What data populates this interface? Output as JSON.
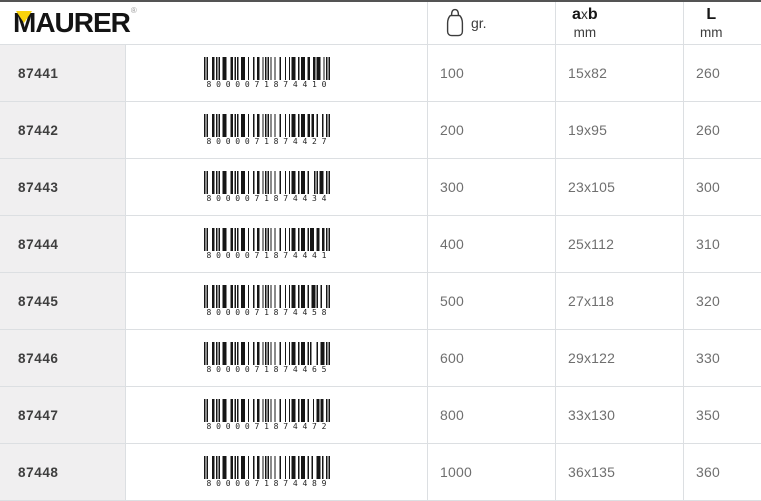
{
  "brand": {
    "logo_text": "MAURER",
    "registered_mark": "®",
    "logo_accent_color": "#f8d20d"
  },
  "table": {
    "header": {
      "weight_icon": "weight-icon",
      "weight_unit": "gr.",
      "dim_label_a": "a",
      "dim_label_x": "x",
      "dim_label_b": "b",
      "dim_unit": "mm",
      "length_label": "L",
      "length_unit": "mm"
    },
    "rows": [
      {
        "code": "87441",
        "barcode": "8000071874410",
        "weight_gr": "100",
        "axb_mm": "15x82",
        "l_mm": "260"
      },
      {
        "code": "87442",
        "barcode": "8000071874427",
        "weight_gr": "200",
        "axb_mm": "19x95",
        "l_mm": "260"
      },
      {
        "code": "87443",
        "barcode": "8000071874434",
        "weight_gr": "300",
        "axb_mm": "23x105",
        "l_mm": "300"
      },
      {
        "code": "87444",
        "barcode": "8000071874441",
        "weight_gr": "400",
        "axb_mm": "25x112",
        "l_mm": "310"
      },
      {
        "code": "87445",
        "barcode": "8000071874458",
        "weight_gr": "500",
        "axb_mm": "27x118",
        "l_mm": "320"
      },
      {
        "code": "87446",
        "barcode": "8000071874465",
        "weight_gr": "600",
        "axb_mm": "29x122",
        "l_mm": "330"
      },
      {
        "code": "87447",
        "barcode": "8000071874472",
        "weight_gr": "800",
        "axb_mm": "33x130",
        "l_mm": "350"
      },
      {
        "code": "87448",
        "barcode": "8000071874489",
        "weight_gr": "1000",
        "axb_mm": "36x135",
        "l_mm": "360"
      }
    ]
  },
  "colors": {
    "top_border": "#545454",
    "grid_border": "#dcdfe2",
    "code_column_bg": "#f0eff0",
    "code_text": "#3e3e3e",
    "value_text": "#6f6f6f",
    "barcode_bars": "#161616",
    "logo_black": "#141414",
    "logo_yellow": "#f8d20d"
  }
}
